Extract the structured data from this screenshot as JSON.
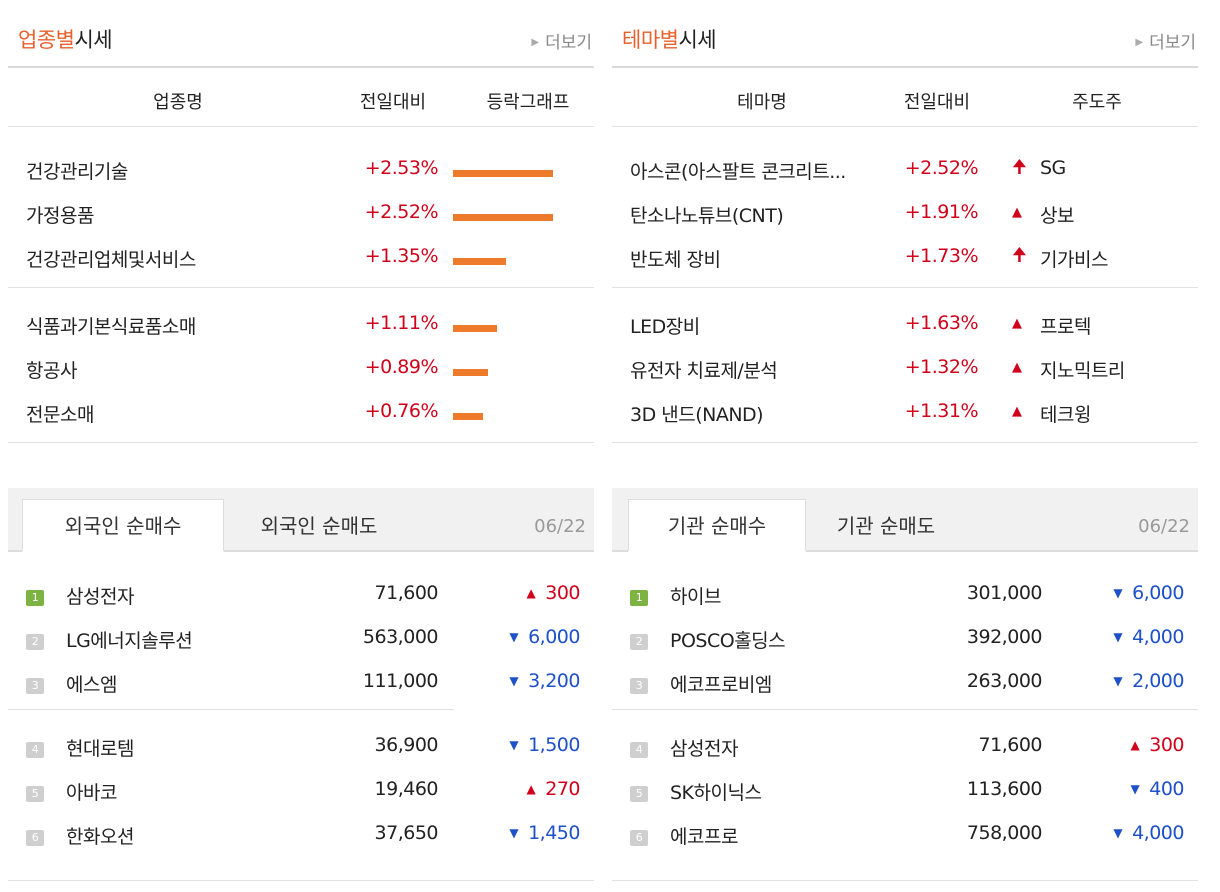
{
  "sector": {
    "title_accent": "업종별",
    "title_rest": "시세",
    "more": "더보기",
    "headers": {
      "name": "업종명",
      "change": "전일대비",
      "graph": "등락그래프"
    },
    "rows": [
      {
        "name": "건강관리기술",
        "change": "+2.53%",
        "pct": 2.53
      },
      {
        "name": "가정용품",
        "change": "+2.52%",
        "pct": 2.52
      },
      {
        "name": "건강관리업체및서비스",
        "change": "+1.35%",
        "pct": 1.35
      },
      {
        "name": "식품과기본식료품소매",
        "change": "+1.11%",
        "pct": 1.11
      },
      {
        "name": "항공사",
        "change": "+0.89%",
        "pct": 0.89
      },
      {
        "name": "전문소매",
        "change": "+0.76%",
        "pct": 0.76
      }
    ]
  },
  "theme": {
    "title_accent": "테마별",
    "title_rest": "시세",
    "more": "더보기",
    "headers": {
      "name": "테마명",
      "change": "전일대비",
      "leader": "주도주"
    },
    "rows": [
      {
        "name": "아스콘(아스팔트 콘크리트...",
        "change": "+2.52%",
        "icon": "upper-limit-arrow-icon",
        "leader": "SG"
      },
      {
        "name": "탄소나노튜브(CNT)",
        "change": "+1.91%",
        "icon": "up-triangle-icon",
        "leader": "상보"
      },
      {
        "name": "반도체 장비",
        "change": "+1.73%",
        "icon": "upper-limit-arrow-icon",
        "leader": "기가비스"
      },
      {
        "name": "LED장비",
        "change": "+1.63%",
        "icon": "up-triangle-icon",
        "leader": "프로텍"
      },
      {
        "name": "유전자 치료제/분석",
        "change": "+1.32%",
        "icon": "up-triangle-icon",
        "leader": "지노믹트리"
      },
      {
        "name": "3D 낸드(NAND)",
        "change": "+1.31%",
        "icon": "up-triangle-icon",
        "leader": "테크윙"
      }
    ]
  },
  "foreign": {
    "tabs": [
      "외국인 순매수",
      "외국인 순매도"
    ],
    "active_tab": 0,
    "date": "06/22",
    "rows": [
      {
        "rank": "1",
        "name": "삼성전자",
        "price": "71,600",
        "dir": "up",
        "diff": "300"
      },
      {
        "rank": "2",
        "name": "LG에너지솔루션",
        "price": "563,000",
        "dir": "down",
        "diff": "6,000"
      },
      {
        "rank": "3",
        "name": "에스엠",
        "price": "111,000",
        "dir": "down",
        "diff": "3,200"
      },
      {
        "rank": "4",
        "name": "현대로템",
        "price": "36,900",
        "dir": "down",
        "diff": "1,500"
      },
      {
        "rank": "5",
        "name": "아바코",
        "price": "19,460",
        "dir": "up",
        "diff": "270"
      },
      {
        "rank": "6",
        "name": "한화오션",
        "price": "37,650",
        "dir": "down",
        "diff": "1,450"
      }
    ]
  },
  "institution": {
    "tabs": [
      "기관 순매수",
      "기관 순매도"
    ],
    "active_tab": 0,
    "date": "06/22",
    "rows": [
      {
        "rank": "1",
        "name": "하이브",
        "price": "301,000",
        "dir": "down",
        "diff": "6,000"
      },
      {
        "rank": "2",
        "name": "POSCO홀딩스",
        "price": "392,000",
        "dir": "down",
        "diff": "4,000"
      },
      {
        "rank": "3",
        "name": "에코프로비엠",
        "price": "263,000",
        "dir": "down",
        "diff": "2,000"
      },
      {
        "rank": "4",
        "name": "삼성전자",
        "price": "71,600",
        "dir": "up",
        "diff": "300"
      },
      {
        "rank": "5",
        "name": "SK하이닉스",
        "price": "113,600",
        "dir": "down",
        "diff": "400"
      },
      {
        "rank": "6",
        "name": "에코프로",
        "price": "758,000",
        "dir": "down",
        "diff": "4,000"
      }
    ]
  },
  "colors": {
    "accent": "#e8612c",
    "up": "#d0021b",
    "down": "#1e50c8",
    "bar": "#ee7b2c",
    "rank1": "#7cb342"
  }
}
